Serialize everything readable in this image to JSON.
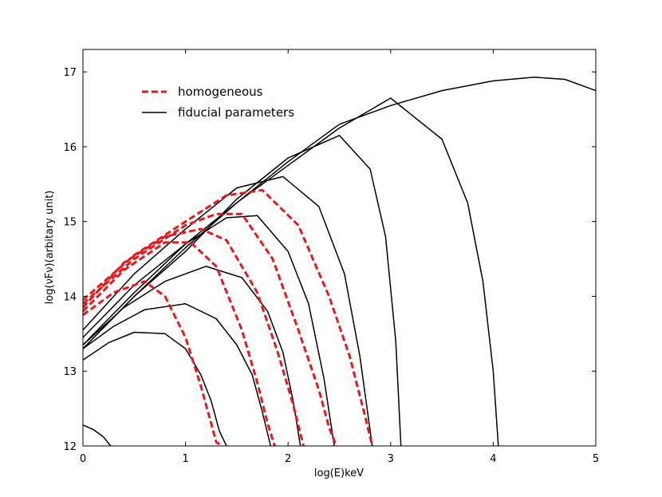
{
  "chart_data": {
    "type": "line",
    "xlabel": "log(E)keV",
    "ylabel": "log(νFν)(arbitary unit)",
    "xlim": [
      0,
      5
    ],
    "ylim": [
      12,
      17.3
    ],
    "xticks": [
      "0",
      "1",
      "2",
      "3",
      "4",
      "5"
    ],
    "yticks": [
      "12",
      "13",
      "14",
      "15",
      "16",
      "17"
    ],
    "grid": false,
    "legend_position": "top-left",
    "legend": [
      {
        "label": "homogeneous",
        "color": "#e8191a",
        "style": "dashed"
      },
      {
        "label": "fiducial parameters",
        "color": "#000000",
        "style": "solid"
      }
    ],
    "series": [
      {
        "group": "fiducial",
        "x": [
          0,
          0.25,
          0.5,
          0.8,
          1.0,
          1.15,
          1.25,
          1.33,
          1.4
        ],
        "y": [
          13.15,
          13.38,
          13.52,
          13.5,
          13.3,
          12.95,
          12.6,
          12.2,
          12.0
        ]
      },
      {
        "group": "fiducial",
        "x": [
          0,
          0.3,
          0.6,
          1.0,
          1.3,
          1.5,
          1.65,
          1.75,
          1.83
        ],
        "y": [
          13.3,
          13.6,
          13.82,
          13.9,
          13.7,
          13.35,
          12.95,
          12.45,
          12.0
        ]
      },
      {
        "group": "fiducial",
        "x": [
          0,
          0.4,
          0.8,
          1.2,
          1.55,
          1.8,
          1.95,
          2.05,
          2.12
        ],
        "y": [
          13.35,
          13.85,
          14.2,
          14.4,
          14.25,
          13.8,
          13.25,
          12.6,
          12.0
        ]
      },
      {
        "group": "fiducial",
        "x": [
          0,
          0.5,
          1.0,
          1.4,
          1.7,
          2.0,
          2.2,
          2.35,
          2.45
        ],
        "y": [
          13.45,
          14.15,
          14.7,
          15.05,
          15.08,
          14.6,
          13.9,
          12.9,
          12.0
        ]
      },
      {
        "group": "fiducial",
        "x": [
          0,
          0.5,
          1.0,
          1.5,
          1.95,
          2.3,
          2.55,
          2.7,
          2.82
        ],
        "y": [
          13.55,
          14.3,
          14.9,
          15.45,
          15.6,
          15.2,
          14.3,
          13.2,
          12.0
        ]
      },
      {
        "group": "fiducial",
        "x": [
          0,
          0.5,
          1.0,
          1.5,
          2.0,
          2.5,
          2.8,
          2.95,
          3.05,
          3.1
        ],
        "y": [
          13.3,
          14.0,
          14.6,
          15.3,
          15.85,
          16.15,
          15.7,
          14.8,
          13.4,
          12.0
        ]
      },
      {
        "group": "fiducial",
        "x": [
          0,
          0.5,
          1.0,
          1.5,
          2.0,
          2.5,
          3.0,
          3.5,
          3.75,
          3.9,
          4.0,
          4.05
        ],
        "y": [
          13.35,
          14.05,
          14.7,
          15.25,
          15.75,
          16.25,
          16.65,
          16.1,
          15.25,
          14.2,
          13.0,
          12.0
        ]
      },
      {
        "group": "fiducial",
        "x": [
          0,
          0.5,
          1.0,
          1.5,
          2.0,
          2.5,
          3.0,
          3.5,
          4.0,
          4.4,
          4.7,
          5.0
        ],
        "y": [
          13.3,
          14.0,
          14.65,
          15.25,
          15.8,
          16.3,
          16.55,
          16.75,
          16.88,
          16.93,
          16.9,
          16.75
        ]
      },
      {
        "group": "fiducial",
        "x": [
          0,
          0.1,
          0.2,
          0.27
        ],
        "y": [
          12.28,
          12.22,
          12.12,
          12.0
        ]
      },
      {
        "group": "homogeneous",
        "x": [
          0,
          0.3,
          0.6,
          0.8,
          1.0,
          1.15,
          1.25,
          1.3,
          1.36
        ],
        "y": [
          13.75,
          14.05,
          14.2,
          14.0,
          13.45,
          12.8,
          12.3,
          12.05,
          12.0
        ]
      },
      {
        "group": "homogeneous",
        "x": [
          0,
          0.4,
          0.8,
          1.05,
          1.3,
          1.55,
          1.7,
          1.8,
          1.87
        ],
        "y": [
          13.8,
          14.35,
          14.72,
          14.72,
          14.4,
          13.55,
          12.85,
          12.3,
          12.0
        ]
      },
      {
        "group": "homogeneous",
        "x": [
          0,
          0.4,
          0.8,
          1.15,
          1.4,
          1.7,
          1.9,
          2.05,
          2.15
        ],
        "y": [
          13.85,
          14.45,
          14.8,
          14.9,
          14.75,
          14.05,
          13.25,
          12.55,
          12.0
        ]
      },
      {
        "group": "homogeneous",
        "x": [
          0,
          0.5,
          1.0,
          1.3,
          1.55,
          1.85,
          2.1,
          2.3,
          2.4,
          2.47
        ],
        "y": [
          13.9,
          14.5,
          14.95,
          15.1,
          15.1,
          14.5,
          13.55,
          12.75,
          12.25,
          12.0
        ]
      },
      {
        "group": "homogeneous",
        "x": [
          0,
          0.5,
          1.0,
          1.4,
          1.75,
          2.1,
          2.4,
          2.6,
          2.75,
          2.82
        ],
        "y": [
          13.95,
          14.55,
          15.0,
          15.35,
          15.42,
          14.95,
          14.0,
          13.2,
          12.4,
          12.0
        ]
      }
    ]
  }
}
